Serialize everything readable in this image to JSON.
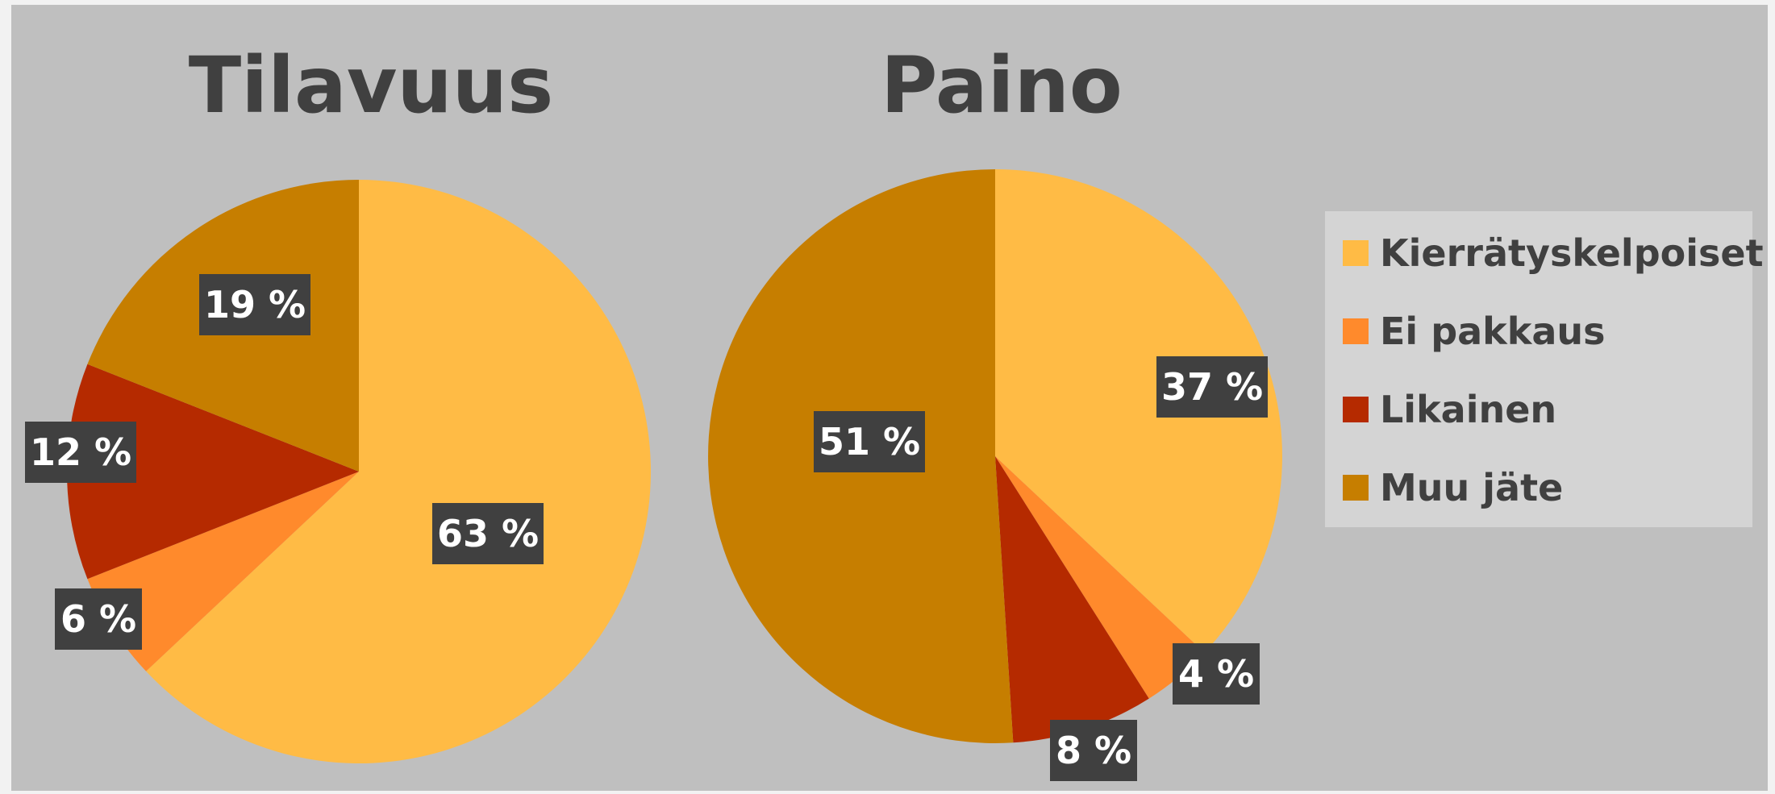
{
  "chart_data": [
    {
      "type": "pie",
      "title": "Tilavuus",
      "categories": [
        "Kierrätyskelpoiset",
        "Ei pakkaus",
        "Likainen",
        "Muu jäte"
      ],
      "values": [
        63,
        6,
        12,
        19
      ],
      "labels": [
        "63 %",
        "6 %",
        "12 %",
        "19 %"
      ]
    },
    {
      "type": "pie",
      "title": "Paino",
      "categories": [
        "Kierrätyskelpoiset",
        "Ei pakkaus",
        "Likainen",
        "Muu jäte"
      ],
      "values": [
        37,
        4,
        8,
        51
      ],
      "labels": [
        "37 %",
        "4 %",
        "8 %",
        "51 %"
      ]
    }
  ],
  "legend": {
    "position": "right",
    "items": [
      "Kierrätyskelpoiset",
      "Ei pakkaus",
      "Likainen",
      "Muu jäte"
    ]
  },
  "colors": {
    "series": [
      "#ffbb45",
      "#ff8a2c",
      "#b52a00",
      "#c67e00"
    ],
    "label_bg": "#404040",
    "background": "#bfbfbf"
  }
}
